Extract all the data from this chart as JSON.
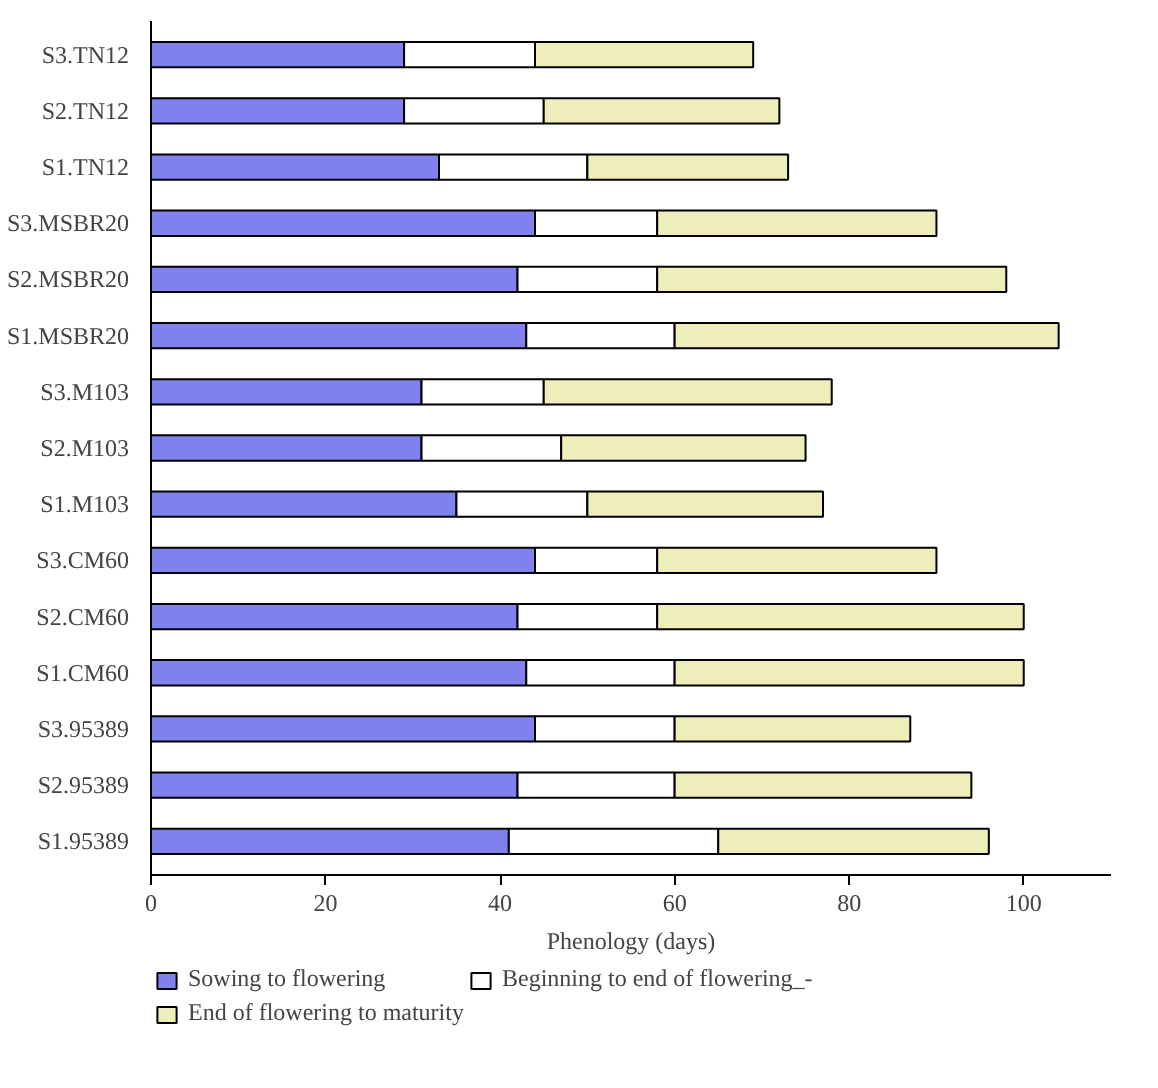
{
  "chart_data": {
    "type": "bar",
    "orientation": "horizontal",
    "stacked": true,
    "xlabel": "Phenology (days)",
    "categories": [
      "S3.TN12",
      "S2.TN12",
      "S1.TN12",
      "S3.MSBR20",
      "S2.MSBR20",
      "S1.MSBR20",
      "S3.M103",
      "S2.M103",
      "S1.M103",
      "S3.CM60",
      "S2.CM60",
      "S1.CM60",
      "S3.95389",
      "S2.95389",
      "S1.95389"
    ],
    "series": [
      {
        "name": "Sowing to flowering",
        "color": "#8080ee",
        "values": [
          29,
          29,
          33,
          44,
          42,
          43,
          31,
          31,
          35,
          44,
          42,
          43,
          44,
          42,
          41
        ]
      },
      {
        "name": "Beginning to end of flowering_-",
        "color": "#ffffff",
        "values": [
          15,
          16,
          17,
          14,
          16,
          17,
          14,
          16,
          15,
          14,
          16,
          17,
          16,
          18,
          24
        ]
      },
      {
        "name": "End of flowering to maturity",
        "color": "#eeeebb",
        "values": [
          25,
          27,
          23,
          32,
          40,
          44,
          33,
          28,
          27,
          32,
          42,
          40,
          27,
          34,
          31
        ]
      }
    ],
    "xlim": [
      0,
      110
    ],
    "xticks": [
      0,
      20,
      40,
      60,
      80,
      100
    ],
    "grid": false,
    "legend": "bottom"
  }
}
